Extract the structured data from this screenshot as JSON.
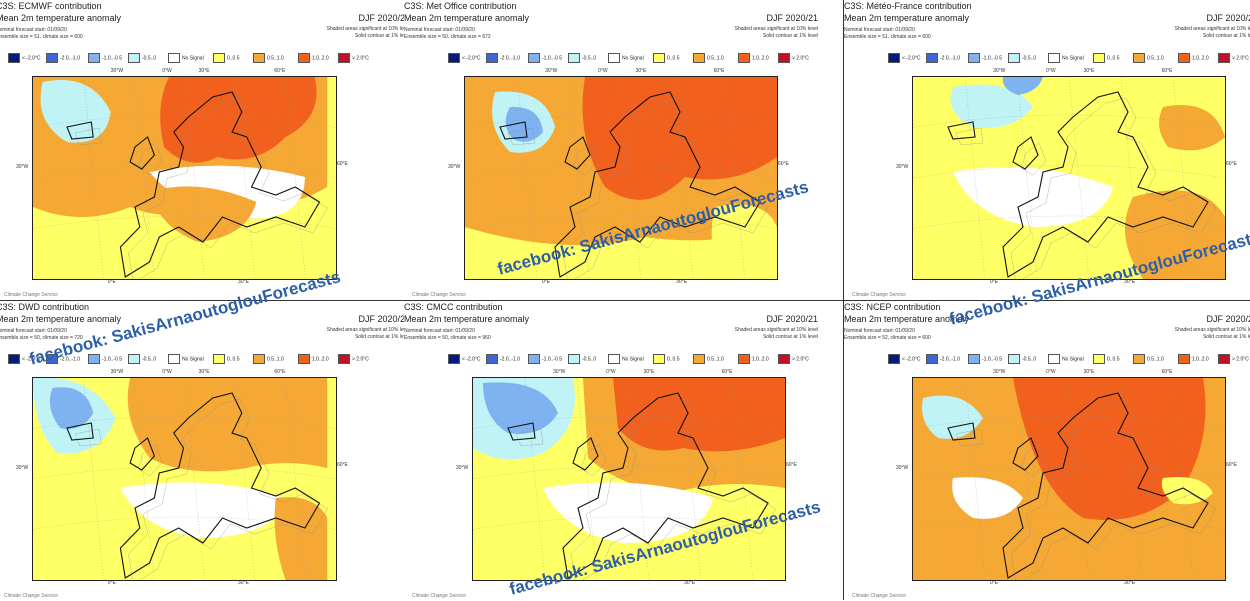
{
  "legend": {
    "items": [
      {
        "label": "< -2.0°C",
        "color": "#0a1a7a"
      },
      {
        "label": "-2.0..-1.0",
        "color": "#3f64d4"
      },
      {
        "label": "-1.0..-0.5",
        "color": "#7fb2f0"
      },
      {
        "label": "-0.5..0",
        "color": "#bff3f5"
      },
      {
        "label": "No Signal",
        "color": "#ffffff"
      },
      {
        "label": "0..0.5",
        "color": "#ffff66"
      },
      {
        "label": "0.5..1.0",
        "color": "#f5a934"
      },
      {
        "label": "1.0..2.0",
        "color": "#f2601e"
      },
      {
        "label": "> 2.0°C",
        "color": "#c0102a"
      }
    ]
  },
  "common": {
    "subtitle": "Mean 2m temperature anomaly",
    "season": "DJF 2020/21",
    "sig1": "Shaded areas significant at 10% level",
    "sig2": "Solid contour at 1% level",
    "forecast_start": "Nominal forecast start: 01/09/20",
    "lon_30w": "30°W",
    "lon_0w": "0°W",
    "lon_30e": "30°E",
    "lon_60e": "60°E",
    "lat_30w": "30°W",
    "lat_60e": "60°E",
    "bottom_0e": "0°E",
    "bottom_30e": "30°E",
    "logo": "Climate Change Service"
  },
  "panels": [
    {
      "title": "C3S: ECMWF contribution",
      "ensemble": "Ensemble size = 51, climate size = 600"
    },
    {
      "title": "C3S: Met Office contribution",
      "ensemble": "Ensemble size = 50, climate size = 672"
    },
    {
      "title": "C3S: Météo-France contribution",
      "ensemble": "Ensemble size = 51, climate size = 600"
    },
    {
      "title": "C3S: DWD contribution",
      "ensemble": "Ensemble size = 50, climate size = 720"
    },
    {
      "title": "C3S: CMCC contribution",
      "ensemble": "Ensemble size = 50, climate size = 960"
    },
    {
      "title": "C3S: NCEP contribution",
      "ensemble": "Ensemble size = 52, climate size = 600"
    }
  ],
  "watermark": {
    "text": "facebook: SakisArnaoutoglouForecasts"
  }
}
